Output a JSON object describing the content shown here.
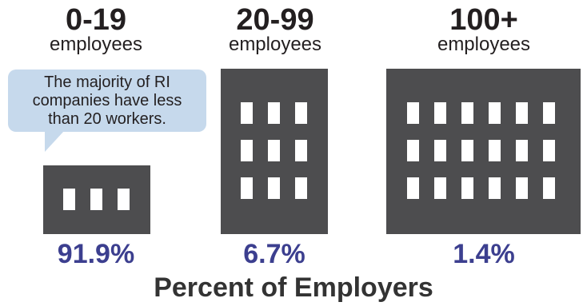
{
  "groups": [
    {
      "size": "0-19",
      "unit": "employees",
      "percent": "91.9%",
      "value": 91.9
    },
    {
      "size": "20-99",
      "unit": "employees",
      "percent": "6.7%",
      "value": 6.7
    },
    {
      "size": "100+",
      "unit": "employees",
      "percent": "1.4%",
      "value": 1.4
    }
  ],
  "callout": {
    "line1": "The majority of RI",
    "line2": "companies have less",
    "line3": "than 20 workers."
  },
  "footer": {
    "title": "Percent of Employers"
  },
  "colors": {
    "building": "#4d4d4f",
    "window": "#ffffff",
    "percent_text": "#3c3f8f",
    "callout_background": "#c6d9ec"
  },
  "icons": {
    "building": "building-icon",
    "window": "window-icon"
  }
}
